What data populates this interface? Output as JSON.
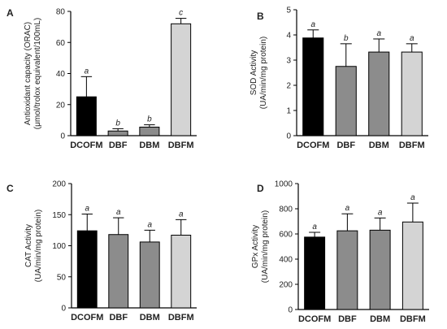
{
  "chart_data": [
    {
      "panel": "A",
      "type": "bar",
      "categories": [
        "DCOFM",
        "DBF",
        "DBM",
        "DBFM"
      ],
      "values": [
        25,
        3,
        5.5,
        72
      ],
      "errors": [
        13,
        1.5,
        1.5,
        3.5
      ],
      "letters": [
        "a",
        "b",
        "b",
        "c"
      ],
      "ylabel": [
        "Antioxidant capacity (ORAC)",
        "(μmol/trolox equivalent/100mL)"
      ],
      "ylim": [
        0,
        80
      ],
      "yticks": [
        0,
        20,
        40,
        60,
        80
      ],
      "colors": [
        "#000000",
        "#8c8c8c",
        "#8c8c8c",
        "#d4d4d4"
      ]
    },
    {
      "panel": "B",
      "type": "bar",
      "categories": [
        "DCOFM",
        "DBF",
        "DBM",
        "DBFM"
      ],
      "values": [
        3.88,
        2.75,
        3.32,
        3.32
      ],
      "errors": [
        0.32,
        0.9,
        0.52,
        0.33
      ],
      "letters": [
        "a",
        "b",
        "a",
        "a"
      ],
      "ylabel": [
        "SOD Activity",
        "(UA/min/mg protein)"
      ],
      "ylim": [
        0,
        5
      ],
      "yticks": [
        0,
        1,
        2,
        3,
        4,
        5
      ],
      "colors": [
        "#000000",
        "#8c8c8c",
        "#8c8c8c",
        "#d4d4d4"
      ]
    },
    {
      "panel": "C",
      "type": "bar",
      "categories": [
        "DCOFM",
        "DBF",
        "DBM",
        "DBFM"
      ],
      "values": [
        124,
        118,
        106,
        117
      ],
      "errors": [
        27,
        27,
        19,
        25
      ],
      "letters": [
        "a",
        "a",
        "a",
        "a"
      ],
      "ylabel": [
        "CAT Activity",
        "(UA/min/mg protein)"
      ],
      "ylim": [
        0,
        200
      ],
      "yticks": [
        0,
        50,
        100,
        150,
        200
      ],
      "colors": [
        "#000000",
        "#8c8c8c",
        "#8c8c8c",
        "#d4d4d4"
      ]
    },
    {
      "panel": "D",
      "type": "bar",
      "categories": [
        "DCOFM",
        "DBF",
        "DBM",
        "DBFM"
      ],
      "values": [
        575,
        625,
        630,
        695
      ],
      "errors": [
        38,
        135,
        97,
        150
      ],
      "letters": [
        "a",
        "a",
        "a",
        "a"
      ],
      "ylabel": [
        "GPx Activity",
        "(UA/min/mg protein)"
      ],
      "ylim": [
        0,
        1000
      ],
      "yticks": [
        0,
        200,
        400,
        600,
        800,
        1000
      ],
      "colors": [
        "#000000",
        "#8c8c8c",
        "#8c8c8c",
        "#d4d4d4"
      ]
    }
  ]
}
